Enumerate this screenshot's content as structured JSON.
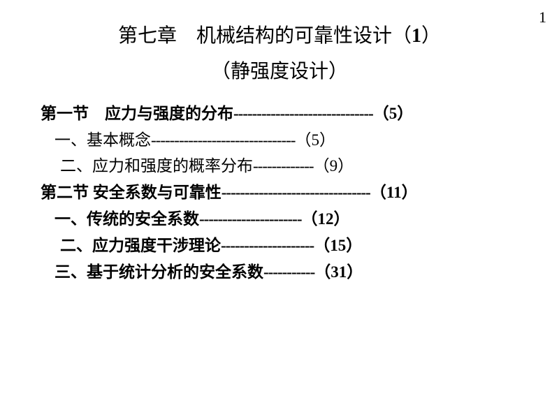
{
  "page_number": "1",
  "title": {
    "line1_prefix": "第七章　机械结构的可靠性设计（",
    "line1_num": "1",
    "line1_suffix": "）",
    "line2": "（静强度设计）"
  },
  "toc": [
    {
      "indent": 0,
      "bold": true,
      "label": "第一节　应力与强度的分布",
      "dashes": "------------------------------",
      "page": "5"
    },
    {
      "indent": 1,
      "bold": false,
      "label": "一、基本概念",
      "dashes": "-------------------------------",
      "page": "5"
    },
    {
      "indent": 2,
      "bold": false,
      "label": "二、应力和强度的概率分布",
      "dashes": "-------------",
      "page": "9"
    },
    {
      "indent": 0,
      "bold": true,
      "label": "第二节 安全系数与可靠性",
      "dashes": "--------------------------------",
      "page": "11"
    },
    {
      "indent": 1,
      "bold": true,
      "label": "一、传统的安全系数",
      "dashes": "----------------------",
      "page": "12"
    },
    {
      "indent": 2,
      "bold": true,
      "label": "二、应力强度干涉理论",
      "dashes": "--------------------",
      "page": "15"
    },
    {
      "indent": 1,
      "bold": true,
      "label": "三、基于统计分析的安全系数",
      "dashes": "-----------",
      "page": "31"
    }
  ],
  "colors": {
    "background": "#ffffff",
    "text": "#000000"
  },
  "fonts": {
    "body_pt": 23,
    "title_pt": 28,
    "page_num_pt": 22
  }
}
